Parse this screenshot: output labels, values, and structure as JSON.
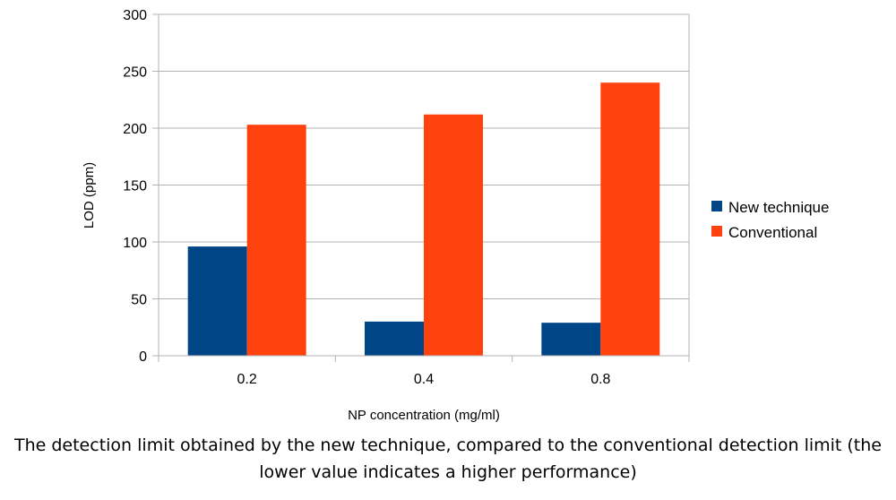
{
  "chart_data": {
    "type": "bar",
    "categories": [
      "0.2",
      "0.4",
      "0.8"
    ],
    "series": [
      {
        "name": "New technique",
        "color": "#004586",
        "values": [
          96,
          30,
          29
        ]
      },
      {
        "name": "Conventional",
        "color": "#ff420e",
        "values": [
          203,
          212,
          240
        ]
      }
    ],
    "xlabel": "NP concentration (mg/ml)",
    "ylabel": "LOD (ppm)",
    "ylim": [
      0,
      300
    ],
    "yticks": [
      0,
      50,
      100,
      150,
      200,
      250,
      300
    ],
    "grid": true,
    "legend": "right"
  },
  "caption": "The detection limit obtained by the new technique, compared to the conventional detection limit (the lower value indicates a higher performance)"
}
